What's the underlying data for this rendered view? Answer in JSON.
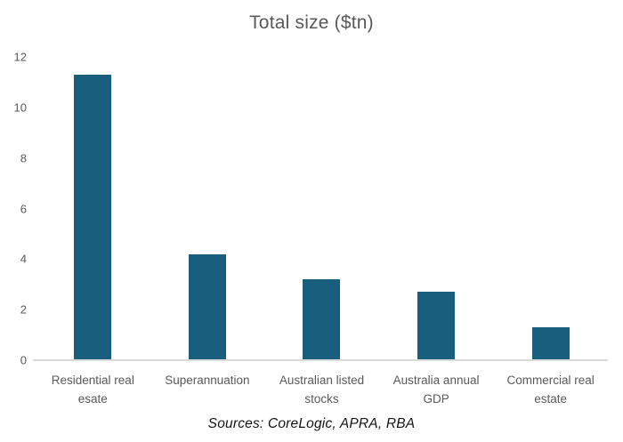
{
  "figure": {
    "title": "Total size ($tn)",
    "source_note": "Sources: CoreLogic, APRA, RBA"
  },
  "colors": {
    "bar": "#185F7E",
    "axis_line": "#D9D9D9",
    "chart_text": "#595959",
    "source_text": "#141414",
    "background": "#FFFFFF"
  },
  "chart_data": {
    "type": "bar",
    "title": "Total size ($tn)",
    "categories": [
      "Residential real esate",
      "Superannuation",
      "Australian listed stocks",
      "Australia annual GDP",
      "Commercial real estate"
    ],
    "categories_display": [
      "Residential real\nesate",
      "Superannuation",
      "Australian listed\nstocks",
      "Australia annual\nGDP",
      "Commercial real\nestate"
    ],
    "values": [
      11.3,
      4.2,
      3.2,
      2.7,
      1.3
    ],
    "xlabel": "",
    "ylabel": "",
    "ylim": [
      0,
      12
    ],
    "yticks": [
      0,
      2,
      4,
      6,
      8,
      10,
      12
    ],
    "grid": false,
    "legend": false,
    "bar_color": "#185F7E",
    "annotation": "Sources: CoreLogic, APRA, RBA"
  }
}
